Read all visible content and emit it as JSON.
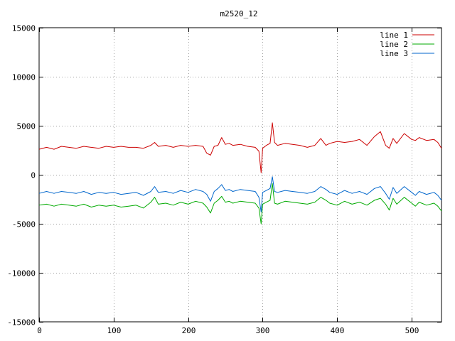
{
  "chart_data": {
    "type": "line",
    "title": "m2520_12",
    "xlabel": "",
    "ylabel": "",
    "xlim": [
      0,
      540
    ],
    "ylim": [
      -15000,
      15000
    ],
    "x_ticks": [
      0,
      100,
      200,
      300,
      400,
      500
    ],
    "x_tick_labels": [
      "0",
      "100",
      "200",
      "300",
      "400",
      "500"
    ],
    "y_ticks": [
      -15000,
      -10000,
      -5000,
      0,
      5000,
      10000,
      15000
    ],
    "y_tick_labels": [
      "-15000",
      "-10000",
      "-5000",
      "0",
      "5000",
      "10000",
      "15000"
    ],
    "grid": true,
    "legend_position": "top-right",
    "x": [
      0,
      10,
      20,
      30,
      40,
      50,
      60,
      70,
      80,
      90,
      100,
      110,
      120,
      130,
      140,
      150,
      155,
      160,
      170,
      180,
      190,
      200,
      210,
      220,
      225,
      230,
      235,
      240,
      245,
      250,
      255,
      260,
      270,
      280,
      290,
      295,
      298,
      300,
      305,
      310,
      313,
      316,
      320,
      330,
      340,
      350,
      360,
      370,
      378,
      385,
      390,
      400,
      410,
      420,
      430,
      440,
      450,
      458,
      465,
      470,
      475,
      480,
      490,
      500,
      505,
      510,
      520,
      530,
      535,
      540
    ],
    "series": [
      {
        "name": "line 1",
        "color": "#cc0000",
        "values": [
          2600,
          2800,
          2600,
          2900,
          2800,
          2700,
          2900,
          2800,
          2700,
          2900,
          2800,
          2900,
          2800,
          2800,
          2700,
          3000,
          3300,
          2900,
          3000,
          2800,
          3000,
          2900,
          3000,
          2900,
          2200,
          2000,
          2900,
          3000,
          3800,
          3100,
          3200,
          3000,
          3100,
          2900,
          2800,
          2400,
          200,
          2700,
          3000,
          3200,
          5300,
          3300,
          3000,
          3200,
          3100,
          3000,
          2800,
          3000,
          3700,
          3000,
          3200,
          3400,
          3300,
          3400,
          3600,
          3000,
          3900,
          4400,
          3000,
          2700,
          3700,
          3200,
          4200,
          3600,
          3500,
          3800,
          3500,
          3600,
          3300,
          2700
        ]
      },
      {
        "name": "line 2",
        "color": "#00aa00",
        "values": [
          -3100,
          -3000,
          -3200,
          -3000,
          -3100,
          -3200,
          -3000,
          -3300,
          -3100,
          -3200,
          -3100,
          -3300,
          -3200,
          -3100,
          -3400,
          -2800,
          -2300,
          -3000,
          -2900,
          -3100,
          -2800,
          -3000,
          -2700,
          -2900,
          -3300,
          -3900,
          -2900,
          -2600,
          -2200,
          -2800,
          -2700,
          -2900,
          -2700,
          -2800,
          -2900,
          -3400,
          -5000,
          -3000,
          -2800,
          -2600,
          -900,
          -2900,
          -3000,
          -2700,
          -2800,
          -2900,
          -3000,
          -2800,
          -2300,
          -2600,
          -2900,
          -3100,
          -2700,
          -3000,
          -2800,
          -3100,
          -2600,
          -2400,
          -3000,
          -3600,
          -2400,
          -3000,
          -2300,
          -2900,
          -3200,
          -2800,
          -3100,
          -2900,
          -3200,
          -3700
        ]
      },
      {
        "name": "line 3",
        "color": "#0066cc",
        "values": [
          -1900,
          -1700,
          -1900,
          -1700,
          -1800,
          -1900,
          -1700,
          -2000,
          -1800,
          -1900,
          -1800,
          -2000,
          -1900,
          -1800,
          -2100,
          -1700,
          -1200,
          -1800,
          -1700,
          -1900,
          -1600,
          -1800,
          -1500,
          -1700,
          -2000,
          -2700,
          -1700,
          -1400,
          -1000,
          -1600,
          -1500,
          -1700,
          -1500,
          -1600,
          -1700,
          -2300,
          -3800,
          -1800,
          -1600,
          -1400,
          -200,
          -1700,
          -1800,
          -1600,
          -1700,
          -1800,
          -1900,
          -1700,
          -1200,
          -1500,
          -1800,
          -2000,
          -1600,
          -1900,
          -1700,
          -2000,
          -1400,
          -1200,
          -1900,
          -2500,
          -1300,
          -1900,
          -1200,
          -1800,
          -2100,
          -1700,
          -2000,
          -1800,
          -2100,
          -2600
        ]
      }
    ]
  }
}
